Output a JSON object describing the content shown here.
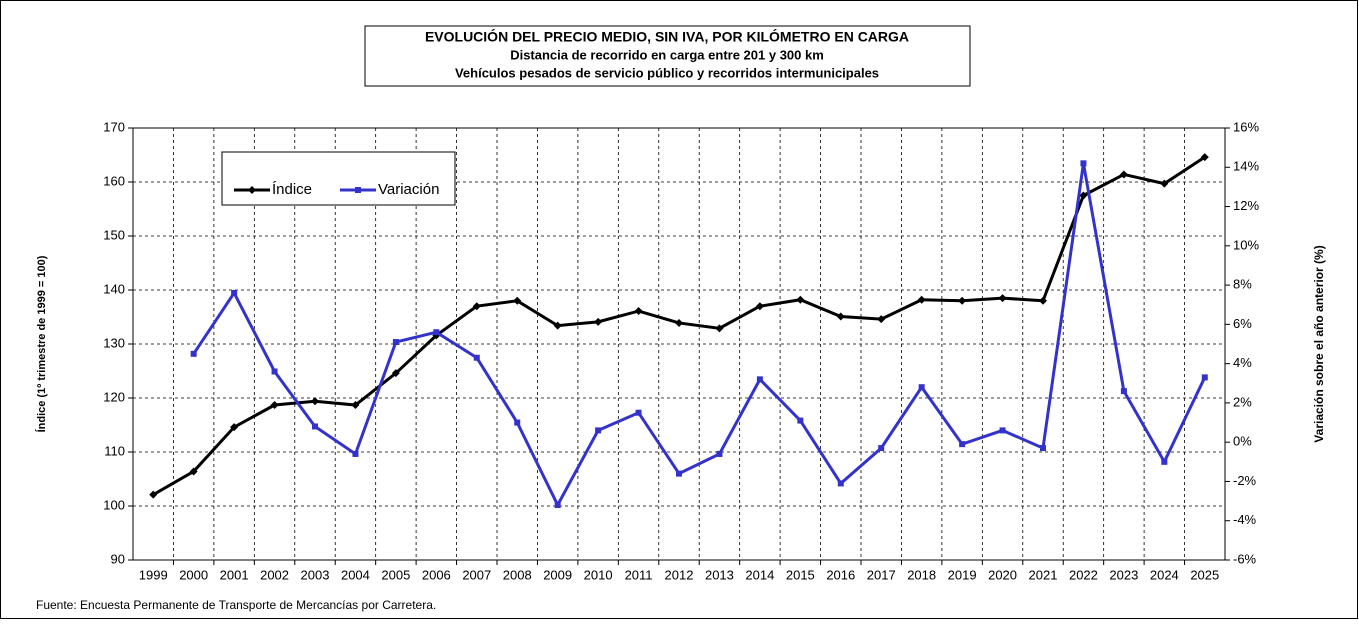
{
  "chart_data": {
    "type": "line",
    "title": "EVOLUCIÓN DEL PRECIO MEDIO, SIN IVA, POR KILÓMETRO EN CARGA",
    "subtitle": [
      "Distancia de recorrido en carga entre 201 y 300 km",
      "Vehículos pesados de servicio público y recorridos intermunicipales"
    ],
    "y_label": "Índice (1º trimestre de 1999 = 100)",
    "y2_label": "Variación sobre el año anterior (%)",
    "source": "Fuente: Encuesta Permanente de Transporte de Mercancías por Carretera.",
    "categories": [
      "1999",
      "2000",
      "2001",
      "2002",
      "2003",
      "2004",
      "2005",
      "2006",
      "2007",
      "2008",
      "2009",
      "2010",
      "2011",
      "2012",
      "2013",
      "2014",
      "2015",
      "2016",
      "2017",
      "2018",
      "2019",
      "2020",
      "2021",
      "2022",
      "2023",
      "2024",
      "2025"
    ],
    "series": [
      {
        "name": "Índice",
        "color": "#000000",
        "marker": "diamond",
        "values": [
          102.1,
          106.4,
          114.6,
          118.7,
          119.4,
          118.7,
          124.6,
          131.6,
          137.0,
          138.0,
          133.4,
          134.1,
          136.1,
          133.9,
          132.9,
          137.0,
          138.2,
          135.1,
          134.6,
          138.2,
          138.0,
          138.5,
          138.0,
          157.5,
          161.4,
          159.7,
          164.6
        ]
      },
      {
        "name": "Variación",
        "color": "#3333cc",
        "marker": "square",
        "axis": "y2",
        "values": [
          null,
          4.5,
          7.6,
          3.6,
          0.8,
          -0.6,
          5.1,
          5.6,
          4.3,
          1.0,
          -3.2,
          0.6,
          1.5,
          -1.6,
          -0.6,
          3.2,
          1.1,
          -2.1,
          -0.3,
          2.8,
          -0.1,
          0.6,
          -0.3,
          14.2,
          2.6,
          -1.0,
          3.3
        ]
      }
    ],
    "ylim": [
      90,
      170
    ],
    "yticks": [
      90,
      100,
      110,
      120,
      130,
      140,
      150,
      160,
      170
    ],
    "y2lim": [
      -6,
      16
    ],
    "y2ticks": [
      {
        "value": -6,
        "label": "-6%"
      },
      {
        "value": -4,
        "label": "-4%"
      },
      {
        "value": -2,
        "label": "-2%"
      },
      {
        "value": 0,
        "label": "0%"
      },
      {
        "value": 2,
        "label": "2%"
      },
      {
        "value": 4,
        "label": "4%"
      },
      {
        "value": 6,
        "label": "6%"
      },
      {
        "value": 8,
        "label": "8%"
      },
      {
        "value": 10,
        "label": "10%"
      },
      {
        "value": 12,
        "label": "12%"
      },
      {
        "value": 14,
        "label": "14%"
      },
      {
        "value": 16,
        "label": "16%"
      }
    ],
    "grid": true,
    "legend": "upper-left"
  }
}
